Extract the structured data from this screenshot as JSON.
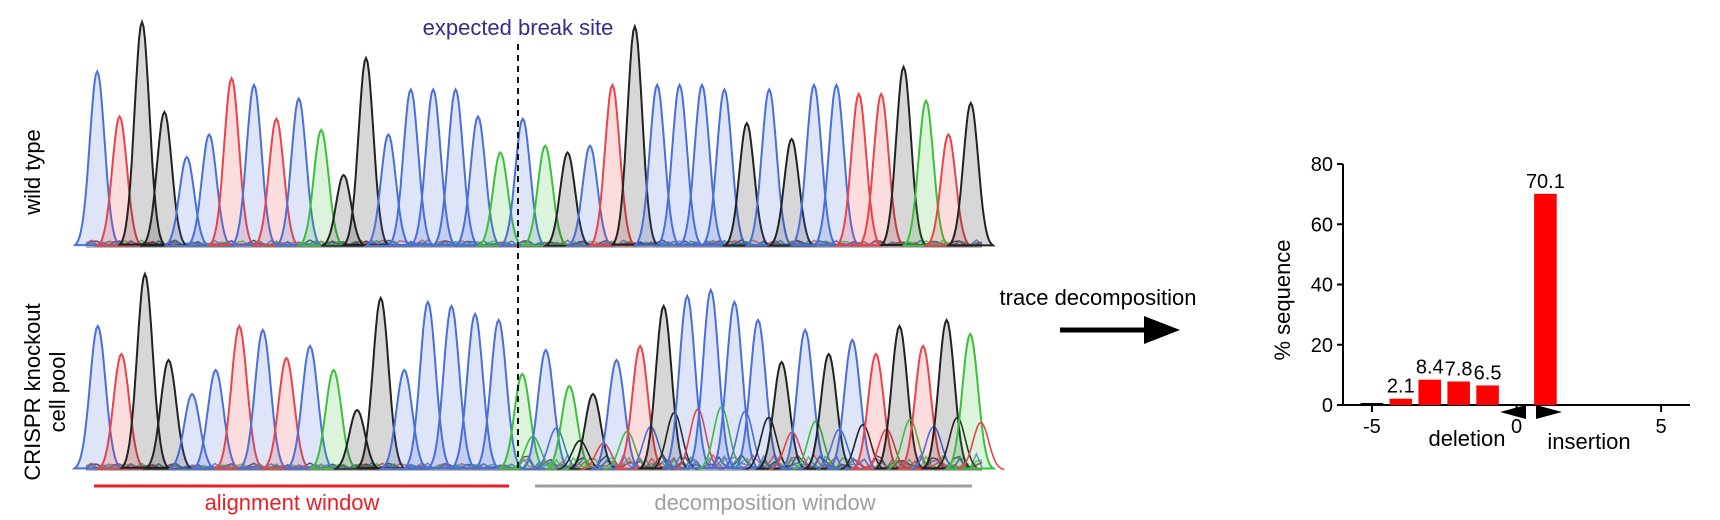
{
  "labels": {
    "break_site": "expected break site",
    "wild_type": "wild type",
    "knockout_line1": "CRISPR knockout",
    "knockout_line2": "cell pool",
    "alignment_window": "alignment window",
    "decomposition_window": "decomposition window",
    "arrow_text": "trace decomposition",
    "deletion": "deletion",
    "insertion": "insertion"
  },
  "colors": {
    "blue": "#4a6fd8",
    "red": "#e8444a",
    "black": "#222222",
    "green": "#3cbf3c",
    "break_label": "#3a2a8a",
    "alignment": "#e8202a",
    "decomposition": "#9aa0a6",
    "bar": "#ff0000"
  },
  "chromatograms": {
    "wild_type": {
      "peaks": [
        [
          "b",
          0.78
        ],
        [
          "r",
          0.58
        ],
        [
          "k",
          1.0
        ],
        [
          "k",
          0.6
        ],
        [
          "b",
          0.4
        ],
        [
          "b",
          0.5
        ],
        [
          "r",
          0.75
        ],
        [
          "b",
          0.72
        ],
        [
          "r",
          0.57
        ],
        [
          "b",
          0.66
        ],
        [
          "g",
          0.52
        ],
        [
          "k",
          0.32
        ],
        [
          "k",
          0.84
        ],
        [
          "b",
          0.5
        ],
        [
          "b",
          0.7
        ],
        [
          "b",
          0.7
        ],
        [
          "b",
          0.7
        ],
        [
          "b",
          0.58
        ],
        [
          "g",
          0.42
        ],
        [
          "b",
          0.57
        ],
        [
          "g",
          0.45
        ],
        [
          "k",
          0.42
        ],
        [
          "b",
          0.45
        ],
        [
          "r",
          0.72
        ],
        [
          "k",
          0.98
        ],
        [
          "b",
          0.72
        ],
        [
          "b",
          0.72
        ],
        [
          "b",
          0.72
        ],
        [
          "b",
          0.7
        ],
        [
          "k",
          0.55
        ],
        [
          "b",
          0.7
        ],
        [
          "k",
          0.48
        ],
        [
          "b",
          0.72
        ],
        [
          "b",
          0.72
        ],
        [
          "r",
          0.68
        ],
        [
          "r",
          0.68
        ],
        [
          "k",
          0.8
        ],
        [
          "g",
          0.65
        ],
        [
          "r",
          0.5
        ],
        [
          "k",
          0.64
        ]
      ]
    },
    "knockout": {
      "peaks": [
        [
          "b",
          0.72
        ],
        [
          "r",
          0.58
        ],
        [
          "k",
          0.98
        ],
        [
          "k",
          0.55
        ],
        [
          "b",
          0.38
        ],
        [
          "b",
          0.5
        ],
        [
          "r",
          0.72
        ],
        [
          "b",
          0.7
        ],
        [
          "r",
          0.56
        ],
        [
          "b",
          0.62
        ],
        [
          "g",
          0.5
        ],
        [
          "k",
          0.3
        ],
        [
          "k",
          0.86
        ],
        [
          "b",
          0.5
        ],
        [
          "b",
          0.84
        ],
        [
          "b",
          0.82
        ],
        [
          "b",
          0.78
        ],
        [
          "b",
          0.75
        ],
        [
          "g",
          0.48
        ],
        [
          "b",
          0.6
        ],
        [
          "g",
          0.42
        ],
        [
          "k",
          0.38
        ],
        [
          "b",
          0.55
        ],
        [
          "r",
          0.62
        ],
        [
          "k",
          0.82
        ],
        [
          "b",
          0.87
        ],
        [
          "b",
          0.9
        ],
        [
          "b",
          0.84
        ],
        [
          "b",
          0.75
        ],
        [
          "k",
          0.54
        ],
        [
          "b",
          0.7
        ],
        [
          "k",
          0.58
        ],
        [
          "b",
          0.65
        ],
        [
          "r",
          0.58
        ],
        [
          "k",
          0.72
        ],
        [
          "r",
          0.62
        ],
        [
          "k",
          0.75
        ],
        [
          "g",
          0.68
        ]
      ]
    }
  },
  "chart_data": {
    "type": "bar",
    "ylabel": "% sequence",
    "x": [
      -5,
      -4,
      -3,
      -2,
      -1,
      1
    ],
    "values": [
      0.0,
      2.1,
      8.4,
      7.8,
      6.5,
      70.1
    ],
    "value_labels": [
      "",
      "2.1",
      "8.4",
      "7.8",
      "6.5",
      "70.1"
    ],
    "xlim": [
      -6,
      6
    ],
    "ylim": [
      0,
      80
    ],
    "x_ticks": [
      "-5",
      "0",
      "5"
    ],
    "y_ticks": [
      "0",
      "20",
      "40",
      "60",
      "80"
    ],
    "grid": false
  }
}
